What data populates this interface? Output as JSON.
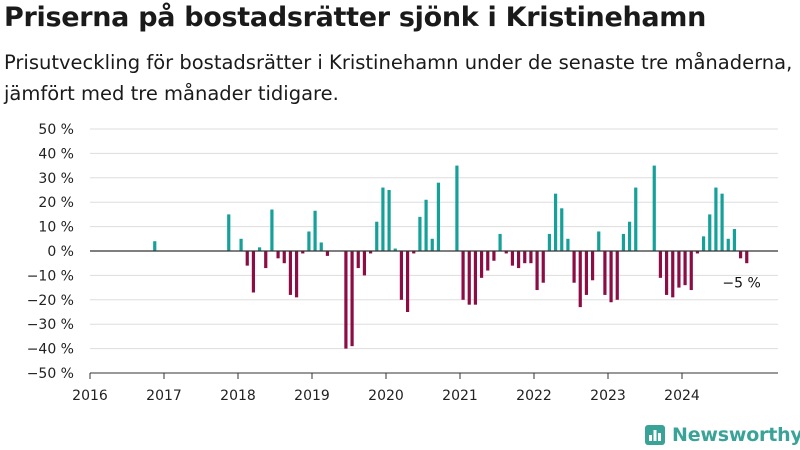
{
  "header": {
    "title": "Priserna på bostadsrätter sjönk i Kristinehamn",
    "subtitle": "Prisutveckling för bostadsrätter i Kristinehamn under de senaste tre månaderna, jämfört med tre månader tidigare."
  },
  "brand": {
    "name": "Newsworthy",
    "icon": "newsworthy-logo-icon"
  },
  "colors": {
    "positive": "#16a09a",
    "negative": "#8c0c44",
    "grid": "#dddddd",
    "zero_line": "#333333"
  },
  "chart_data": {
    "type": "bar",
    "title": "Priserna på bostadsrätter sjönk i Kristinehamn",
    "xlabel": "",
    "ylabel": "",
    "ylim": [
      -50,
      50
    ],
    "yticks": [
      -50,
      -40,
      -30,
      -20,
      -10,
      0,
      10,
      20,
      30,
      40,
      50
    ],
    "ytick_labels": [
      "−50 %",
      "−40 %",
      "−30 %",
      "−20 %",
      "−10 %",
      "0 %",
      "10 %",
      "20 %",
      "30 %",
      "40 %",
      "50 %"
    ],
    "xlim": [
      "2016-01",
      "2025-04"
    ],
    "xtick_labels": [
      "2016",
      "2017",
      "2018",
      "2019",
      "2020",
      "2021",
      "2022",
      "2023",
      "2024"
    ],
    "grid": "horizontal",
    "unit": "%",
    "annotation": {
      "text": "−5 %",
      "date": "2024-10"
    },
    "series": [
      {
        "values": [
          [
            "2016-11",
            4
          ],
          [
            "2017-11",
            15
          ],
          [
            "2018-01",
            5
          ],
          [
            "2018-02",
            -6
          ],
          [
            "2018-03",
            -17
          ],
          [
            "2018-04",
            1.5
          ],
          [
            "2018-05",
            -7
          ],
          [
            "2018-06",
            17
          ],
          [
            "2018-07",
            -3
          ],
          [
            "2018-08",
            -5
          ],
          [
            "2018-09",
            -18
          ],
          [
            "2018-10",
            -19
          ],
          [
            "2018-11",
            -1
          ],
          [
            "2018-12",
            8
          ],
          [
            "2019-01",
            16.5
          ],
          [
            "2019-02",
            3.5
          ],
          [
            "2019-03",
            -2
          ],
          [
            "2019-06",
            -40
          ],
          [
            "2019-07",
            -39
          ],
          [
            "2019-08",
            -7
          ],
          [
            "2019-09",
            -10
          ],
          [
            "2019-10",
            -1
          ],
          [
            "2019-11",
            12
          ],
          [
            "2019-12",
            26
          ],
          [
            "2020-01",
            25
          ],
          [
            "2020-02",
            1
          ],
          [
            "2020-03",
            -20
          ],
          [
            "2020-04",
            -25
          ],
          [
            "2020-05",
            -1
          ],
          [
            "2020-06",
            14
          ],
          [
            "2020-07",
            21
          ],
          [
            "2020-08",
            5
          ],
          [
            "2020-09",
            28
          ],
          [
            "2020-12",
            35
          ],
          [
            "2021-01",
            -20
          ],
          [
            "2021-02",
            -22
          ],
          [
            "2021-03",
            -22
          ],
          [
            "2021-04",
            -11
          ],
          [
            "2021-05",
            -8
          ],
          [
            "2021-06",
            -4
          ],
          [
            "2021-07",
            7
          ],
          [
            "2021-08",
            -1
          ],
          [
            "2021-09",
            -6
          ],
          [
            "2021-10",
            -7
          ],
          [
            "2021-11",
            -5
          ],
          [
            "2021-12",
            -5
          ],
          [
            "2022-01",
            -16
          ],
          [
            "2022-02",
            -13
          ],
          [
            "2022-03",
            7
          ],
          [
            "2022-04",
            23.5
          ],
          [
            "2022-05",
            17.5
          ],
          [
            "2022-06",
            5
          ],
          [
            "2022-07",
            -13
          ],
          [
            "2022-08",
            -23
          ],
          [
            "2022-09",
            -18
          ],
          [
            "2022-10",
            -12
          ],
          [
            "2022-11",
            8
          ],
          [
            "2022-12",
            -18
          ],
          [
            "2023-01",
            -21
          ],
          [
            "2023-02",
            -20
          ],
          [
            "2023-03",
            7
          ],
          [
            "2023-04",
            12
          ],
          [
            "2023-05",
            26
          ],
          [
            "2023-08",
            35
          ],
          [
            "2023-09",
            -11
          ],
          [
            "2023-10",
            -18
          ],
          [
            "2023-11",
            -19
          ],
          [
            "2023-12",
            -15
          ],
          [
            "2024-01",
            -14
          ],
          [
            "2024-02",
            -16
          ],
          [
            "2024-03",
            -1
          ],
          [
            "2024-04",
            6
          ],
          [
            "2024-05",
            15
          ],
          [
            "2024-06",
            26
          ],
          [
            "2024-07",
            23.5
          ],
          [
            "2024-08",
            5
          ],
          [
            "2024-09",
            9
          ],
          [
            "2024-10",
            -3
          ],
          [
            "2024-11",
            -5
          ]
        ]
      }
    ]
  }
}
